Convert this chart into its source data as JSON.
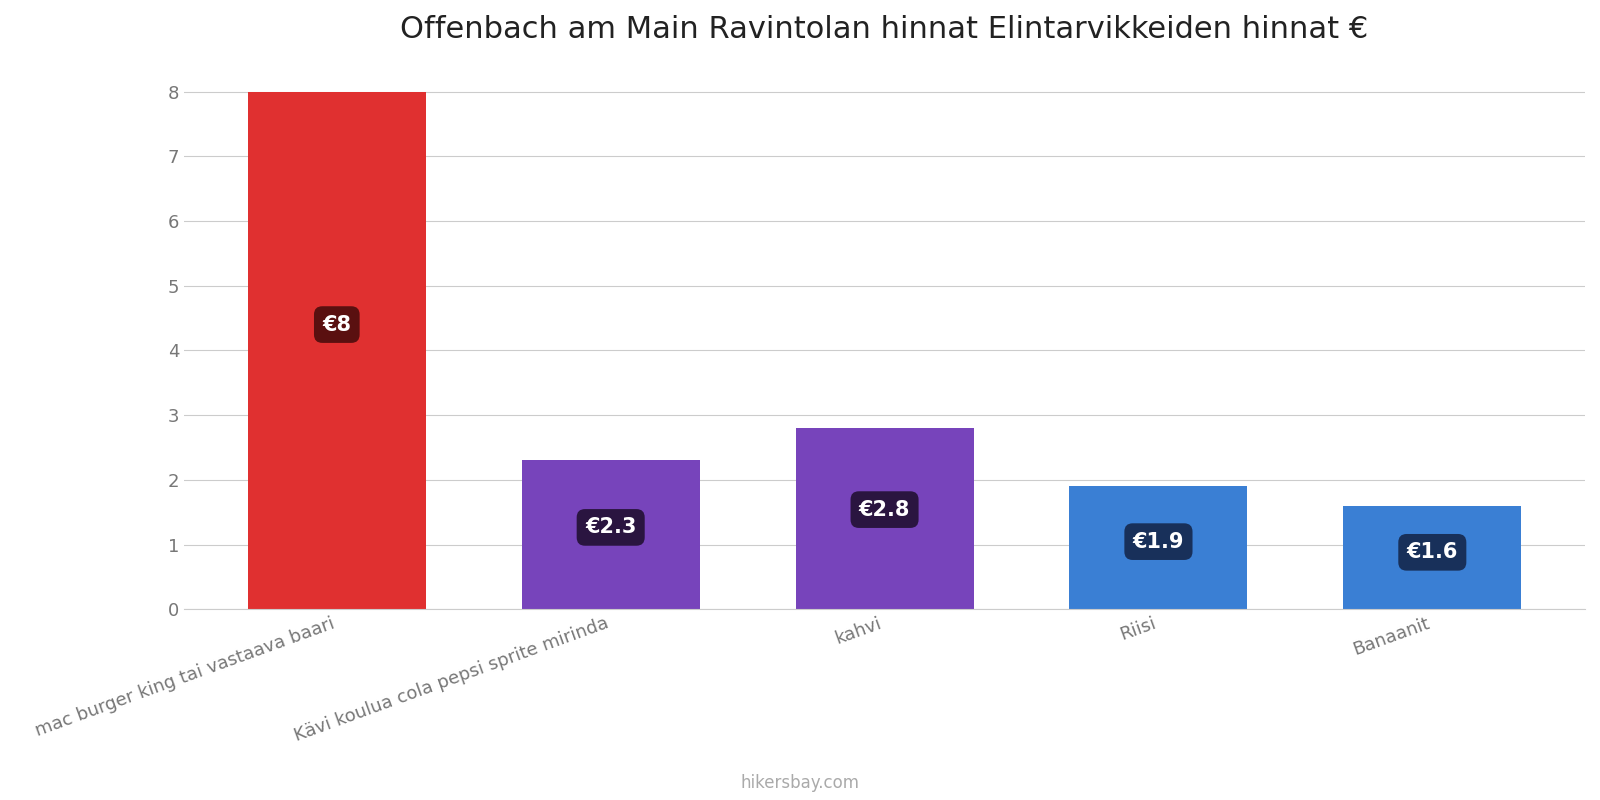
{
  "title": "Offenbach am Main Ravintolan hinnat Elintarvikkeiden hinnat €",
  "categories": [
    "mac burger king tai vastaava baari",
    "Kävi koulua cola pepsi sprite mirinda",
    "kahvi",
    "Riisi",
    "Banaanit"
  ],
  "values": [
    8.0,
    2.3,
    2.8,
    1.9,
    1.6
  ],
  "bar_colors": [
    "#e03030",
    "#7744bb",
    "#7744bb",
    "#3a7fd4",
    "#3a7fd4"
  ],
  "label_bg_colors": [
    "#5a1010",
    "#2a1540",
    "#2a1540",
    "#18305a",
    "#18305a"
  ],
  "labels": [
    "€8",
    "€2.3",
    "€2.8",
    "€1.9",
    "€1.6"
  ],
  "ylim": [
    0,
    8.4
  ],
  "yticks": [
    0,
    1,
    2,
    3,
    4,
    5,
    6,
    7,
    8
  ],
  "background_color": "#ffffff",
  "grid_color": "#cccccc",
  "title_fontsize": 22,
  "label_fontsize": 15,
  "tick_fontsize": 13,
  "xtick_fontsize": 13,
  "watermark": "hikersbay.com",
  "bar_width": 0.65
}
